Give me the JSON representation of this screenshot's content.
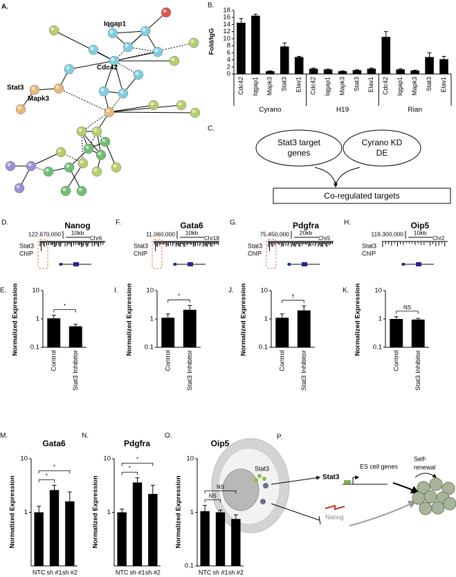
{
  "network": {
    "panel": "A.",
    "labels": [
      "Iqgap1",
      "Cdc42",
      "Stat3",
      "Mapk3"
    ]
  },
  "chart_data": [
    {
      "type": "bar",
      "panel": "B.",
      "y_label": "Fold/IgG",
      "categories": [
        "Cdc42",
        "Iqgap1",
        "Mapk3",
        "Stat3",
        "Elav1",
        "Cdc42",
        "Iqgap1",
        "Mapk3",
        "Stat3",
        "Elav1",
        "Cdc42",
        "Iqgap1",
        "Mapk3",
        "Stat3",
        "Elav1"
      ],
      "groups": [
        "Cyrano",
        "H19",
        "Rian"
      ],
      "values": [
        14.5,
        16.5,
        0.8,
        7.8,
        4.8,
        1.5,
        1.3,
        0.8,
        1.1,
        1.5,
        10.5,
        1.3,
        1.0,
        4.8,
        4.2
      ],
      "errors": [
        1.2,
        0.4,
        0.1,
        1.0,
        0.2,
        0.2,
        0.1,
        0.1,
        0.1,
        0.2,
        1.5,
        0.2,
        0.1,
        1.2,
        0.8
      ],
      "color": "#000000",
      "ylim": [
        0,
        18
      ],
      "yticks": [
        0,
        2,
        4,
        6,
        8,
        10,
        12,
        14,
        16,
        18
      ]
    },
    {
      "type": "bar",
      "panel": "E.",
      "y_label": "Normalized Expression",
      "categories": [
        "Control",
        "Stat3 Inhibitor"
      ],
      "values": [
        1.05,
        0.55
      ],
      "errors": [
        0.3,
        0.1
      ],
      "color": "#000000",
      "log_scale": true,
      "ylim": [
        0.1,
        10
      ],
      "yticks": [
        0.1,
        1,
        10
      ],
      "significance": [
        "*"
      ]
    },
    {
      "type": "bar",
      "panel": "I.",
      "y_label": "Normalized Expression",
      "categories": [
        "Control",
        "Stat3 Inhibitor"
      ],
      "values": [
        1.1,
        2.1
      ],
      "errors": [
        0.4,
        0.9
      ],
      "color": "#000000",
      "log_scale": true,
      "ylim": [
        0.1,
        10
      ],
      "yticks": [
        0.1,
        1,
        10
      ],
      "significance": [
        "*"
      ]
    },
    {
      "type": "bar",
      "panel": "J.",
      "y_label": "Normalized Expression",
      "categories": [
        "Control",
        "Stat3 Inhibitor"
      ],
      "values": [
        1.1,
        2.0
      ],
      "errors": [
        0.4,
        0.9
      ],
      "color": "#000000",
      "log_scale": true,
      "ylim": [
        0.1,
        10
      ],
      "yticks": [
        0.1,
        1,
        10
      ],
      "significance": [
        "†"
      ]
    },
    {
      "type": "bar",
      "panel": "K.",
      "y_label": "Normalized Expression",
      "categories": [
        "Control",
        "Stat3 Inhibitor"
      ],
      "values": [
        1.0,
        0.95
      ],
      "errors": [
        0.2,
        0.1
      ],
      "color": "#000000",
      "log_scale": true,
      "ylim": [
        0.1,
        10
      ],
      "yticks": [
        0.1,
        1,
        10
      ],
      "significance": [
        "NS"
      ]
    },
    {
      "type": "bar",
      "panel": "M.",
      "title": "Gata6",
      "y_label": "Normalized Expression",
      "categories": [
        "NTC",
        "sh #1",
        "sh #2"
      ],
      "values": [
        1.0,
        2.6,
        1.6
      ],
      "errors": [
        0.3,
        0.6,
        0.8
      ],
      "color": "#000000",
      "log_scale": true,
      "ylim": [
        0.1,
        10
      ],
      "yticks": [
        1,
        10
      ],
      "significance": [
        "*",
        "*"
      ]
    },
    {
      "type": "bar",
      "panel": "N.",
      "title": "Pdgfra",
      "y_label": "Normalized Expression",
      "categories": [
        "NTC",
        "sh #1",
        "sh #2"
      ],
      "values": [
        1.0,
        3.6,
        2.2
      ],
      "errors": [
        0.15,
        0.8,
        1.0
      ],
      "color": "#000000",
      "log_scale": true,
      "ylim": [
        0.1,
        10
      ],
      "yticks": [
        1,
        10
      ],
      "significance": [
        "*",
        "*"
      ]
    },
    {
      "type": "bar",
      "panel": "O.",
      "title": "Oip5",
      "y_label": "Normalized Expression",
      "categories": [
        "NTC",
        "sh #1",
        "sh #2"
      ],
      "values": [
        1.05,
        1.0,
        0.75
      ],
      "errors": [
        0.3,
        0.1,
        0.15
      ],
      "color": "#000000",
      "log_scale": true,
      "ylim": [
        0.1,
        10
      ],
      "yticks": [
        0.1,
        1,
        10
      ],
      "significance": [
        "NS",
        "NS"
      ]
    }
  ],
  "flowchart": {
    "panel": "C.",
    "left": [
      "Stat3 target",
      "genes"
    ],
    "right": [
      "Cyrano KD",
      "DE"
    ],
    "result": "Co-regulated targets"
  },
  "tracks": [
    {
      "panel": "D.",
      "gene": "Nanog",
      "coordinate": "122,670,000",
      "scale": "10kb",
      "chromosome": "Chr6",
      "track_label": [
        "Stat3",
        "ChIP"
      ]
    },
    {
      "panel": "F.",
      "gene": "Gata6",
      "coordinate": "11,060,000",
      "scale": "10kb",
      "chromosome": "Chr18",
      "track_label": [
        "Stat3",
        "ChIP"
      ]
    },
    {
      "panel": "G.",
      "gene": "Pdgfra",
      "coordinate": "75,450,000",
      "scale": "20kb",
      "chromosome": "Chr5",
      "track_label": [
        "Stat3",
        "ChIP"
      ]
    },
    {
      "panel": "H.",
      "gene": "Oip5",
      "coordinate": "119,300,000",
      "scale": "10kb",
      "chromosome": "Chr2",
      "track_label": [
        "Stat3",
        "ChIP"
      ]
    }
  ],
  "cartoon": {
    "panel": "P.",
    "stat3_cell": "Stat3",
    "stat3_dna": "Stat3",
    "target": "ES cell genes",
    "outcome": [
      "Self-",
      "renewal"
    ],
    "repressed": "Nanog"
  }
}
